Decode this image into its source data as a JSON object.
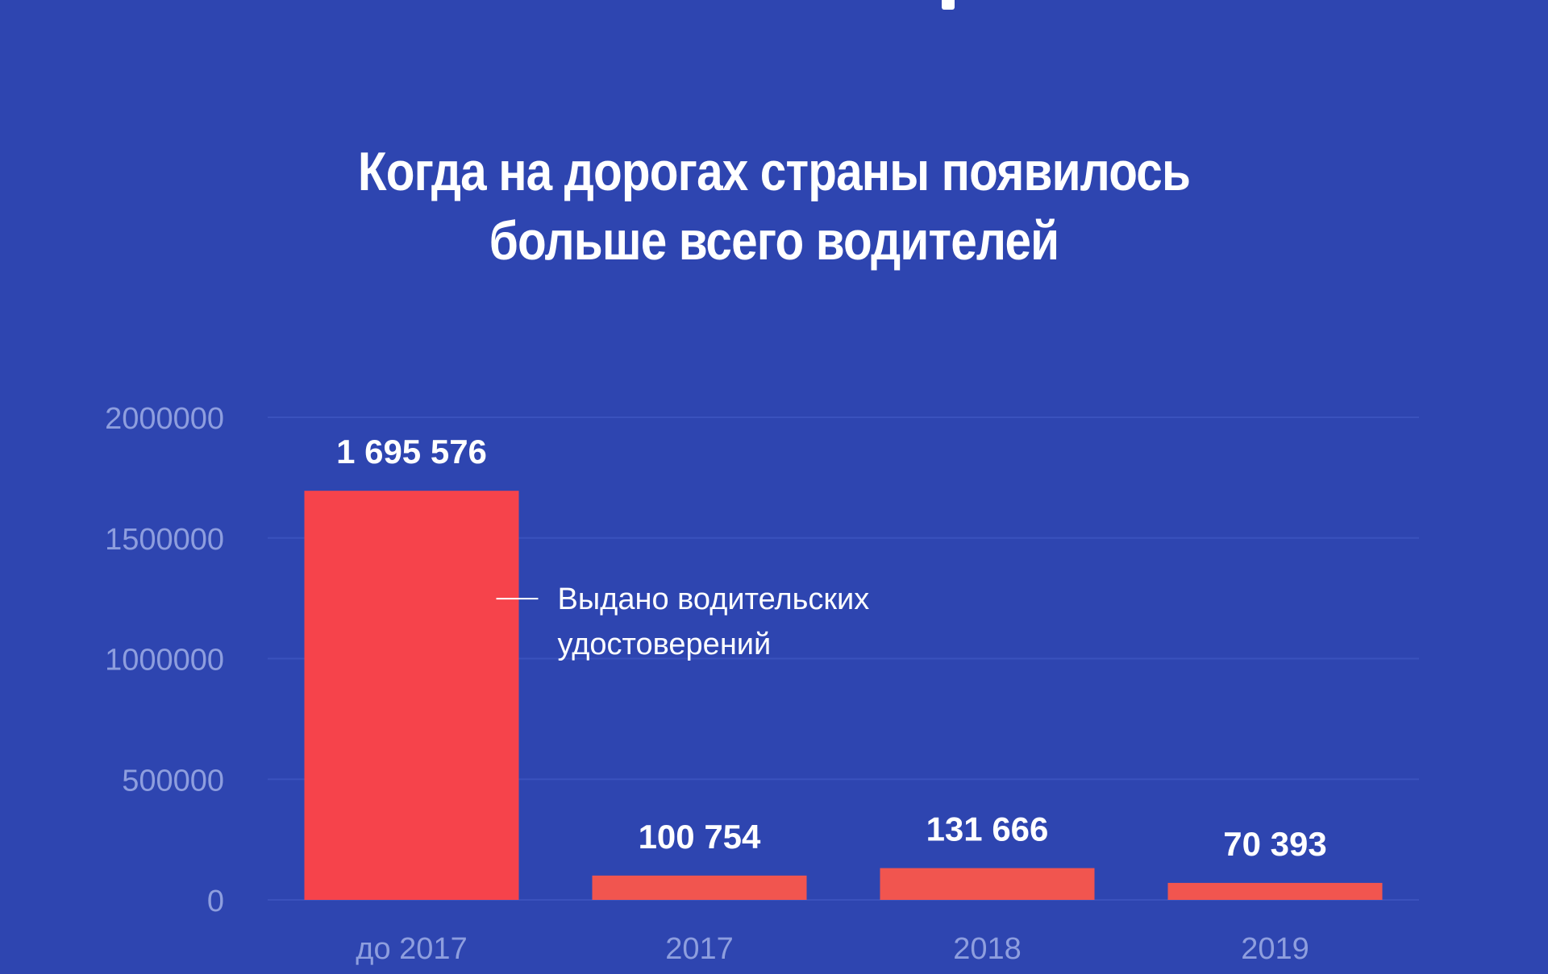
{
  "chart_data": {
    "type": "bar",
    "title_lines": [
      "Когда на дорогах страны появилось",
      "больше всего водителей"
    ],
    "categories": [
      "до 2017",
      "2017",
      "2018",
      "2019"
    ],
    "series": [
      {
        "name": "Выдано водительских удостоверений",
        "name_lines": [
          "Выдано водительских",
          "удостоверений"
        ],
        "values": [
          1695576,
          100754,
          131666,
          70393
        ],
        "value_labels": [
          "1 695 576",
          "100 754",
          "131 666",
          "70 393"
        ]
      }
    ],
    "yticks": [
      "0",
      "500000",
      "1000000",
      "1500000",
      "2000000"
    ],
    "ylim": [
      0,
      2000000
    ],
    "grid": true,
    "legend_placement": "inside, right of first bar"
  },
  "colors": {
    "background": "#2e45b0",
    "bar_primary": "#f6434b",
    "bar_secondary": "#f1554f",
    "grid": "#3a52bd",
    "tick_text": "#8e9ede",
    "text": "#ffffff"
  }
}
